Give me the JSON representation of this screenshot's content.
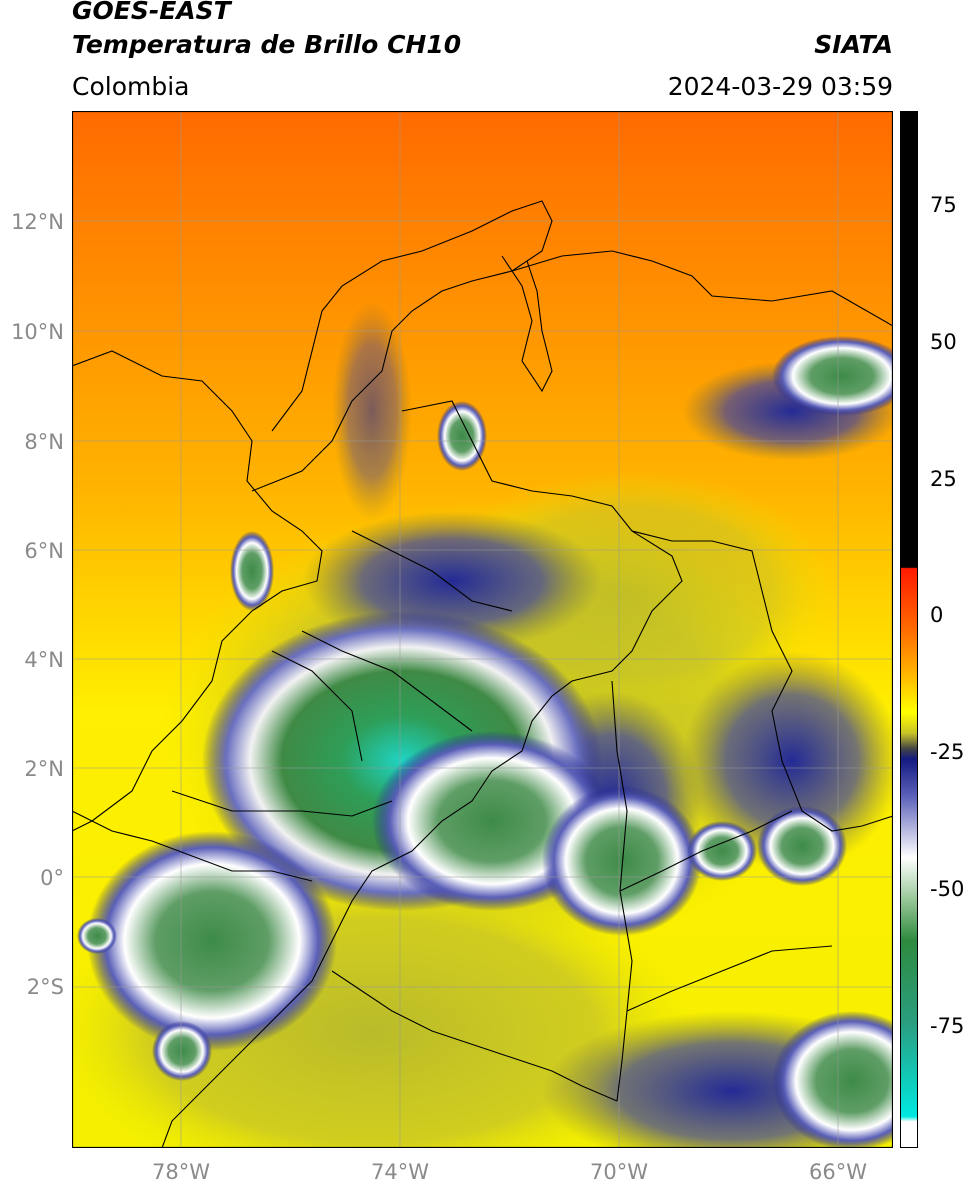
{
  "header": {
    "satellite": "GOES-EAST",
    "product": "Temperatura de Brillo CH10",
    "region": "Colombia",
    "agency": "SIATA",
    "datetime": "2024-03-29 03:59"
  },
  "map": {
    "lat_labels": [
      "12°N",
      "10°N",
      "8°N",
      "6°N",
      "4°N",
      "2°N",
      "0°",
      "2°S"
    ],
    "lon_labels": [
      "78°W",
      "74°W",
      "70°W",
      "66°W"
    ],
    "extent": {
      "lon_min": -79.9,
      "lon_max": -64.9,
      "lat_min": -4.8,
      "lat_max": 14.2
    },
    "gridlines": true
  },
  "colorbar": {
    "tick_labels": [
      "75",
      "50",
      "25",
      "0",
      "-25",
      "-50",
      "-75"
    ],
    "tick_values": [
      75,
      50,
      25,
      0,
      -25,
      -50,
      -75
    ],
    "range": [
      -93,
      90
    ],
    "colors": {
      "warm_black": "#000000",
      "red": "#ff1a00",
      "orange": "#ff8c00",
      "yellow": "#ffff00",
      "olive": "#b5b82a",
      "navy": "#1b1f8a",
      "white": "#ffffff",
      "green": "#2e8b3e",
      "cyan": "#1fd4c4"
    }
  }
}
